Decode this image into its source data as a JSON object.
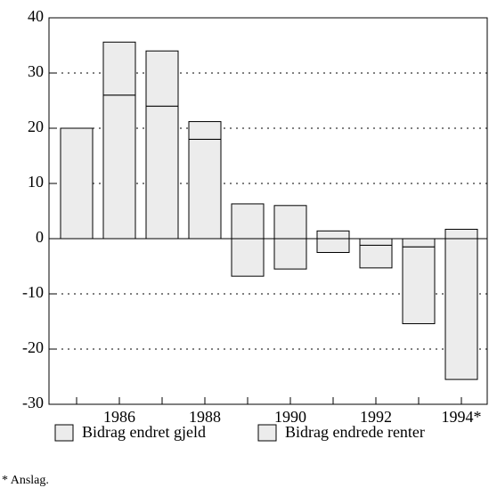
{
  "chart_data": {
    "type": "stacked_bar",
    "categories": [
      null,
      "1986",
      null,
      "1988",
      null,
      "1990",
      null,
      "1992",
      null,
      "1994*"
    ],
    "series": [
      {
        "name": "Bidrag endret gjeld",
        "color": "#ececec",
        "values": [
          20,
          26,
          24,
          18,
          6.3,
          6,
          1.4,
          -1.2,
          -1.5,
          -25.5
        ]
      },
      {
        "name": "Bidrag endrede renter",
        "color": "#ececec",
        "values": [
          0,
          9.6,
          10,
          3.2,
          -6.8,
          -5.5,
          -2.5,
          -4.1,
          -13.9,
          1.7
        ]
      }
    ],
    "ylim": [
      -30,
      40
    ],
    "yticks": [
      -30,
      -20,
      -10,
      0,
      10,
      20,
      30,
      40
    ],
    "grid": true,
    "legend": "bottom",
    "footnote": "* Anslag."
  }
}
